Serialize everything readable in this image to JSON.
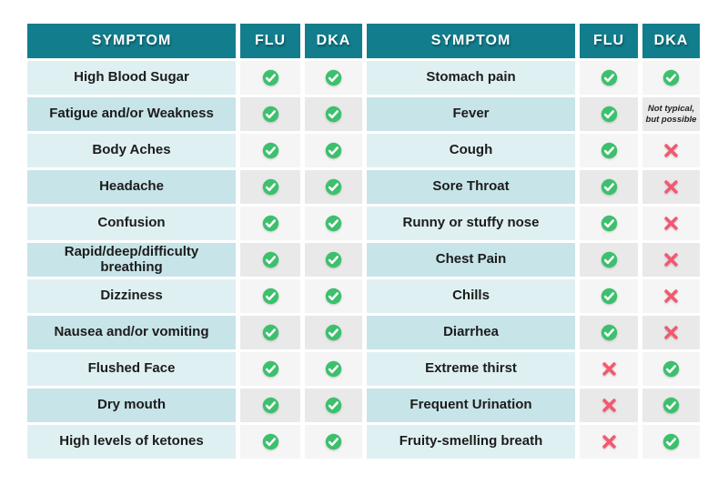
{
  "colors": {
    "header_teal": "#127E8D",
    "row_teal_light": "#DFF0F2",
    "row_teal_dark": "#C7E4E8",
    "mark_cell_light": "#F5F5F5",
    "mark_cell_dark": "#E9E9E9",
    "check_green": "#3DC06E",
    "cross_pink": "#F2596F",
    "text_dark": "#1C1C1C"
  },
  "chart_data": {
    "type": "table",
    "title": "",
    "columns": [
      "SYMPTOM",
      "FLU",
      "DKA"
    ],
    "left_rows": [
      {
        "symptom": "High Blood Sugar",
        "flu": "yes",
        "dka": "yes"
      },
      {
        "symptom": "Fatigue and/or Weakness",
        "flu": "yes",
        "dka": "yes"
      },
      {
        "symptom": "Body Aches",
        "flu": "yes",
        "dka": "yes"
      },
      {
        "symptom": "Headache",
        "flu": "yes",
        "dka": "yes"
      },
      {
        "symptom": "Confusion",
        "flu": "yes",
        "dka": "yes"
      },
      {
        "symptom": "Rapid/deep/difficulty breathing",
        "flu": "yes",
        "dka": "yes"
      },
      {
        "symptom": "Dizziness",
        "flu": "yes",
        "dka": "yes"
      },
      {
        "symptom": "Nausea and/or vomiting",
        "flu": "yes",
        "dka": "yes"
      },
      {
        "symptom": "Flushed Face",
        "flu": "yes",
        "dka": "yes"
      },
      {
        "symptom": "Dry mouth",
        "flu": "yes",
        "dka": "yes"
      },
      {
        "symptom": "High levels of ketones",
        "flu": "yes",
        "dka": "yes"
      }
    ],
    "right_rows": [
      {
        "symptom": "Stomach pain",
        "flu": "yes",
        "dka": "yes"
      },
      {
        "symptom": "Fever",
        "flu": "yes",
        "dka": "note"
      },
      {
        "symptom": "Cough",
        "flu": "yes",
        "dka": "no"
      },
      {
        "symptom": "Sore Throat",
        "flu": "yes",
        "dka": "no"
      },
      {
        "symptom": "Runny or stuffy nose",
        "flu": "yes",
        "dka": "no"
      },
      {
        "symptom": "Chest Pain",
        "flu": "yes",
        "dka": "no"
      },
      {
        "symptom": "Chills",
        "flu": "yes",
        "dka": "no"
      },
      {
        "symptom": "Diarrhea",
        "flu": "yes",
        "dka": "no"
      },
      {
        "symptom": "Extreme thirst",
        "flu": "no",
        "dka": "yes"
      },
      {
        "symptom": "Frequent Urination",
        "flu": "no",
        "dka": "yes"
      },
      {
        "symptom": "Fruity-smelling breath",
        "flu": "no",
        "dka": "yes"
      }
    ],
    "note_text": "Not typical, but possible",
    "note_lines": [
      "Not typical,",
      "but possible"
    ]
  }
}
